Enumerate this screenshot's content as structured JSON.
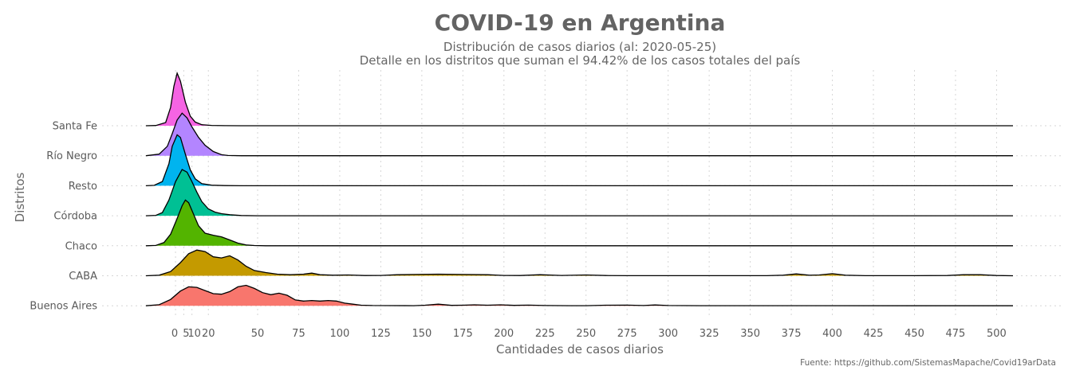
{
  "chart_data": {
    "type": "ridgeline",
    "title": "COVID-19 en Argentina",
    "subtitle_line1": "Distribución de casos diarios (al: 2020-05-25)",
    "subtitle_line2": "Detalle en los distritos que suman el 94.42% de los casos totales del país",
    "xlabel": "Cantidades de casos diarios",
    "ylabel": "Distritos",
    "caption": "Fuente: https://github.com/SistemasMapache/Covid19arData",
    "x_ticks": [
      "0",
      "5",
      "10",
      "20",
      "50",
      "75",
      "100",
      "125",
      "150",
      "175",
      "200",
      "225",
      "250",
      "275",
      "300",
      "325",
      "350",
      "375",
      "400",
      "425",
      "450",
      "475",
      "500"
    ],
    "x_tick_values": [
      0,
      5,
      10,
      20,
      50,
      75,
      100,
      125,
      150,
      175,
      200,
      225,
      250,
      275,
      300,
      325,
      350,
      375,
      400,
      425,
      450,
      475,
      500
    ],
    "xlim": [
      -18,
      510
    ],
    "grid": true,
    "legend": "none",
    "series": [
      {
        "name": "Santa Fe",
        "color": "#F564E3",
        "points": [
          [
            -18,
            0
          ],
          [
            -12,
            0.004
          ],
          [
            -6,
            0.06
          ],
          [
            -3,
            0.35
          ],
          [
            -1,
            0.75
          ],
          [
            1,
            1.0
          ],
          [
            3,
            0.85
          ],
          [
            6,
            0.45
          ],
          [
            9,
            0.18
          ],
          [
            12,
            0.07
          ],
          [
            16,
            0.02
          ],
          [
            22,
            0.006
          ],
          [
            30,
            0.002
          ],
          [
            40,
            0
          ],
          [
            510,
            0
          ]
        ]
      },
      {
        "name": "Río Negro",
        "color": "#B385FF",
        "points": [
          [
            -18,
            0
          ],
          [
            -10,
            0.03
          ],
          [
            -5,
            0.18
          ],
          [
            -2,
            0.42
          ],
          [
            1,
            0.68
          ],
          [
            4,
            0.81
          ],
          [
            7,
            0.72
          ],
          [
            10,
            0.55
          ],
          [
            14,
            0.35
          ],
          [
            18,
            0.2
          ],
          [
            23,
            0.08
          ],
          [
            28,
            0.02
          ],
          [
            32,
            0.004
          ],
          [
            40,
            0
          ],
          [
            510,
            0
          ]
        ]
      },
      {
        "name": "Resto",
        "color": "#00B4EF",
        "points": [
          [
            -18,
            0
          ],
          [
            -13,
            0.008
          ],
          [
            -8,
            0.08
          ],
          [
            -4,
            0.42
          ],
          [
            -2,
            0.75
          ],
          [
            1,
            0.97
          ],
          [
            3,
            0.92
          ],
          [
            6,
            0.6
          ],
          [
            9,
            0.3
          ],
          [
            12,
            0.13
          ],
          [
            16,
            0.04
          ],
          [
            22,
            0.01
          ],
          [
            30,
            0.003
          ],
          [
            40,
            0
          ],
          [
            510,
            0
          ]
        ]
      },
      {
        "name": "Córdoba",
        "color": "#00C094",
        "points": [
          [
            -18,
            0
          ],
          [
            -12,
            0.008
          ],
          [
            -8,
            0.06
          ],
          [
            -4,
            0.3
          ],
          [
            0,
            0.65
          ],
          [
            4,
            0.88
          ],
          [
            7,
            0.83
          ],
          [
            10,
            0.65
          ],
          [
            13,
            0.45
          ],
          [
            16,
            0.27
          ],
          [
            20,
            0.13
          ],
          [
            24,
            0.07
          ],
          [
            28,
            0.04
          ],
          [
            33,
            0.02
          ],
          [
            40,
            0.005
          ],
          [
            50,
            0
          ],
          [
            510,
            0
          ]
        ]
      },
      {
        "name": "Chaco",
        "color": "#53B400",
        "points": [
          [
            -18,
            0
          ],
          [
            -12,
            0.006
          ],
          [
            -7,
            0.06
          ],
          [
            -3,
            0.22
          ],
          [
            1,
            0.52
          ],
          [
            4,
            0.76
          ],
          [
            6,
            0.87
          ],
          [
            8,
            0.82
          ],
          [
            11,
            0.6
          ],
          [
            14,
            0.38
          ],
          [
            18,
            0.24
          ],
          [
            23,
            0.2
          ],
          [
            28,
            0.17
          ],
          [
            33,
            0.11
          ],
          [
            38,
            0.05
          ],
          [
            43,
            0.015
          ],
          [
            48,
            0.004
          ],
          [
            55,
            0
          ],
          [
            510,
            0
          ]
        ]
      },
      {
        "name": "CABA",
        "color": "#C49A00",
        "points": [
          [
            -18,
            0
          ],
          [
            -10,
            0.01
          ],
          [
            -3,
            0.08
          ],
          [
            3,
            0.25
          ],
          [
            8,
            0.42
          ],
          [
            13,
            0.49
          ],
          [
            18,
            0.46
          ],
          [
            23,
            0.36
          ],
          [
            28,
            0.34
          ],
          [
            33,
            0.38
          ],
          [
            38,
            0.3
          ],
          [
            43,
            0.18
          ],
          [
            48,
            0.1
          ],
          [
            55,
            0.06
          ],
          [
            62,
            0.03
          ],
          [
            70,
            0.02
          ],
          [
            78,
            0.03
          ],
          [
            83,
            0.05
          ],
          [
            88,
            0.02
          ],
          [
            96,
            0.01
          ],
          [
            105,
            0.015
          ],
          [
            115,
            0.004
          ],
          [
            125,
            0.006
          ],
          [
            135,
            0.02
          ],
          [
            145,
            0.025
          ],
          [
            160,
            0.03
          ],
          [
            175,
            0.025
          ],
          [
            190,
            0.02
          ],
          [
            200,
            0.006
          ],
          [
            210,
            0.004
          ],
          [
            222,
            0.02
          ],
          [
            235,
            0.006
          ],
          [
            250,
            0.015
          ],
          [
            262,
            0.005
          ],
          [
            275,
            0.002
          ],
          [
            300,
            0.002
          ],
          [
            330,
            0.001
          ],
          [
            360,
            0.002
          ],
          [
            370,
            0.01
          ],
          [
            378,
            0.035
          ],
          [
            386,
            0.01
          ],
          [
            392,
            0.015
          ],
          [
            400,
            0.04
          ],
          [
            408,
            0.01
          ],
          [
            420,
            0.002
          ],
          [
            450,
            0.002
          ],
          [
            470,
            0.005
          ],
          [
            480,
            0.02
          ],
          [
            490,
            0.02
          ],
          [
            500,
            0.005
          ],
          [
            510,
            0
          ]
        ]
      },
      {
        "name": "Buenos Aires",
        "color": "#F8766D",
        "points": [
          [
            -18,
            0
          ],
          [
            -10,
            0.02
          ],
          [
            -3,
            0.12
          ],
          [
            3,
            0.28
          ],
          [
            8,
            0.36
          ],
          [
            13,
            0.35
          ],
          [
            18,
            0.29
          ],
          [
            23,
            0.23
          ],
          [
            28,
            0.22
          ],
          [
            33,
            0.27
          ],
          [
            38,
            0.36
          ],
          [
            43,
            0.39
          ],
          [
            48,
            0.33
          ],
          [
            53,
            0.25
          ],
          [
            58,
            0.21
          ],
          [
            63,
            0.24
          ],
          [
            68,
            0.2
          ],
          [
            73,
            0.11
          ],
          [
            78,
            0.09
          ],
          [
            83,
            0.1
          ],
          [
            88,
            0.09
          ],
          [
            93,
            0.1
          ],
          [
            98,
            0.09
          ],
          [
            103,
            0.05
          ],
          [
            108,
            0.03
          ],
          [
            113,
            0.01
          ],
          [
            120,
            0.005
          ],
          [
            130,
            0.003
          ],
          [
            145,
            0.002
          ],
          [
            152,
            0.01
          ],
          [
            160,
            0.03
          ],
          [
            168,
            0.008
          ],
          [
            175,
            0.01
          ],
          [
            182,
            0.018
          ],
          [
            190,
            0.01
          ],
          [
            198,
            0.018
          ],
          [
            206,
            0.008
          ],
          [
            215,
            0.012
          ],
          [
            225,
            0.005
          ],
          [
            240,
            0.002
          ],
          [
            250,
            0.002
          ],
          [
            262,
            0.01
          ],
          [
            275,
            0.012
          ],
          [
            285,
            0.005
          ],
          [
            292,
            0.015
          ],
          [
            300,
            0.005
          ],
          [
            320,
            0.001
          ],
          [
            510,
            0
          ]
        ]
      }
    ]
  }
}
